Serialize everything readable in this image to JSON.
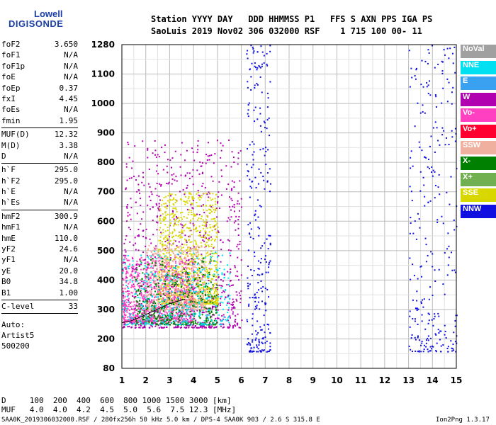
{
  "logo": {
    "line1": "Lowell",
    "line2": "DIGISONDE"
  },
  "header": {
    "line1": "Station YYYY DAY   DDD HHMMSS P1   FFS S AXN PPS IGA PS",
    "line2": "SaoLuis 2019 Nov02 306 032000 RSF    1 715 100 00- 11"
  },
  "params": [
    {
      "k": "foF2",
      "v": "3.650"
    },
    {
      "k": "foF1",
      "v": "N/A"
    },
    {
      "k": "foF1p",
      "v": "N/A"
    },
    {
      "k": "foE",
      "v": "N/A"
    },
    {
      "k": "foEp",
      "v": "0.37"
    },
    {
      "k": "fxI",
      "v": "4.45"
    },
    {
      "k": "foEs",
      "v": "N/A"
    },
    {
      "k": "fmin",
      "v": "1.95"
    },
    {
      "k": "MUF(D)",
      "v": "12.32",
      "sep": true
    },
    {
      "k": "M(D)",
      "v": "3.38"
    },
    {
      "k": "D",
      "v": "N/A"
    },
    {
      "k": "h`F",
      "v": "295.0",
      "sep": true
    },
    {
      "k": "h`F2",
      "v": "295.0"
    },
    {
      "k": "h`E",
      "v": "N/A"
    },
    {
      "k": "h`Es",
      "v": "N/A"
    },
    {
      "k": "hmF2",
      "v": "300.9",
      "sep": true
    },
    {
      "k": "hmF1",
      "v": "N/A"
    },
    {
      "k": "hmE",
      "v": "110.0"
    },
    {
      "k": "yF2",
      "v": "24.6"
    },
    {
      "k": "yF1",
      "v": "N/A"
    },
    {
      "k": "yE",
      "v": "20.0"
    },
    {
      "k": "B0",
      "v": "34.8"
    },
    {
      "k": "B1",
      "v": "1.00"
    },
    {
      "k": "C-level",
      "v": "33",
      "sep": true
    }
  ],
  "auto": {
    "line1": "Auto:",
    "line2": "Artist5",
    "line3": "500200"
  },
  "legend": [
    {
      "label": "NoVal",
      "color": "#a0a0a0"
    },
    {
      "label": "NNE",
      "color": "#00e0f0"
    },
    {
      "label": "E",
      "color": "#3aa0f0"
    },
    {
      "label": "W",
      "color": "#b000b0"
    },
    {
      "label": "Vo-",
      "color": "#ff40c0"
    },
    {
      "label": "Vo+",
      "color": "#ff0030"
    },
    {
      "label": "SSW",
      "color": "#f0b0a0"
    },
    {
      "label": "X-",
      "color": "#008000"
    },
    {
      "label": "X+",
      "color": "#70b050"
    },
    {
      "label": "SSE",
      "color": "#d8d800"
    },
    {
      "label": "NNW",
      "color": "#1010e0"
    }
  ],
  "footer": {
    "d_row": "D     100  200  400  600  800 1000 1500 3000 [km]",
    "muf_row": "MUF   4.0  4.0  4.2  4.5  5.0  5.6  7.5 12.3 [MHz]",
    "info": "SAA0K_2019306032000.RSF / 280fx256h 50 kHz 5.0 km / DPS-4 SAA0K 903 / 2.6 S 315.8 E",
    "version": "Ion2Png 1.3.17"
  },
  "chart_data": {
    "type": "scatter",
    "x_ticks": [
      "1",
      "2",
      "3",
      "4",
      "5",
      "6",
      "7",
      "8",
      "9",
      "10",
      "11",
      "12",
      "13",
      "14",
      "15"
    ],
    "y_ticks": [
      "80",
      "200",
      "300",
      "400",
      "500",
      "600",
      "700",
      "800",
      "900",
      "1000",
      "1100",
      "1280"
    ],
    "xlim": [
      1,
      15
    ],
    "ylim": [
      80,
      1280
    ],
    "grid": true,
    "legend_position": "right",
    "regions": [
      {
        "label": "W",
        "x": [
          1.0,
          6.0
        ],
        "y": [
          240,
          880
        ],
        "density": 1.0
      },
      {
        "label": "SSE",
        "x": [
          2.5,
          5.0
        ],
        "y": [
          320,
          700
        ],
        "density": 1.0
      },
      {
        "label": "Vo-",
        "x": [
          1.0,
          4.0
        ],
        "y": [
          260,
          480
        ],
        "density": 0.9
      },
      {
        "label": "SSW",
        "x": [
          2.0,
          4.5
        ],
        "y": [
          300,
          520
        ],
        "density": 0.6
      },
      {
        "label": "X-",
        "x": [
          1.5,
          5.0
        ],
        "y": [
          250,
          480
        ],
        "density": 0.5
      },
      {
        "label": "NNE",
        "x": [
          1.0,
          5.5
        ],
        "y": [
          250,
          500
        ],
        "density": 0.4
      },
      {
        "label": "NNW",
        "x": [
          6.2,
          7.2
        ],
        "y": [
          150,
          1280
        ],
        "density": 0.3
      },
      {
        "label": "NNW",
        "x": [
          13.0,
          15.0
        ],
        "y": [
          150,
          1280
        ],
        "density": 0.3
      }
    ],
    "trace": {
      "x": [
        1.0,
        1.4,
        1.8,
        2.2,
        2.6,
        3.0,
        3.4,
        3.65
      ],
      "y": [
        255,
        262,
        275,
        290,
        305,
        320,
        330,
        335
      ]
    }
  }
}
